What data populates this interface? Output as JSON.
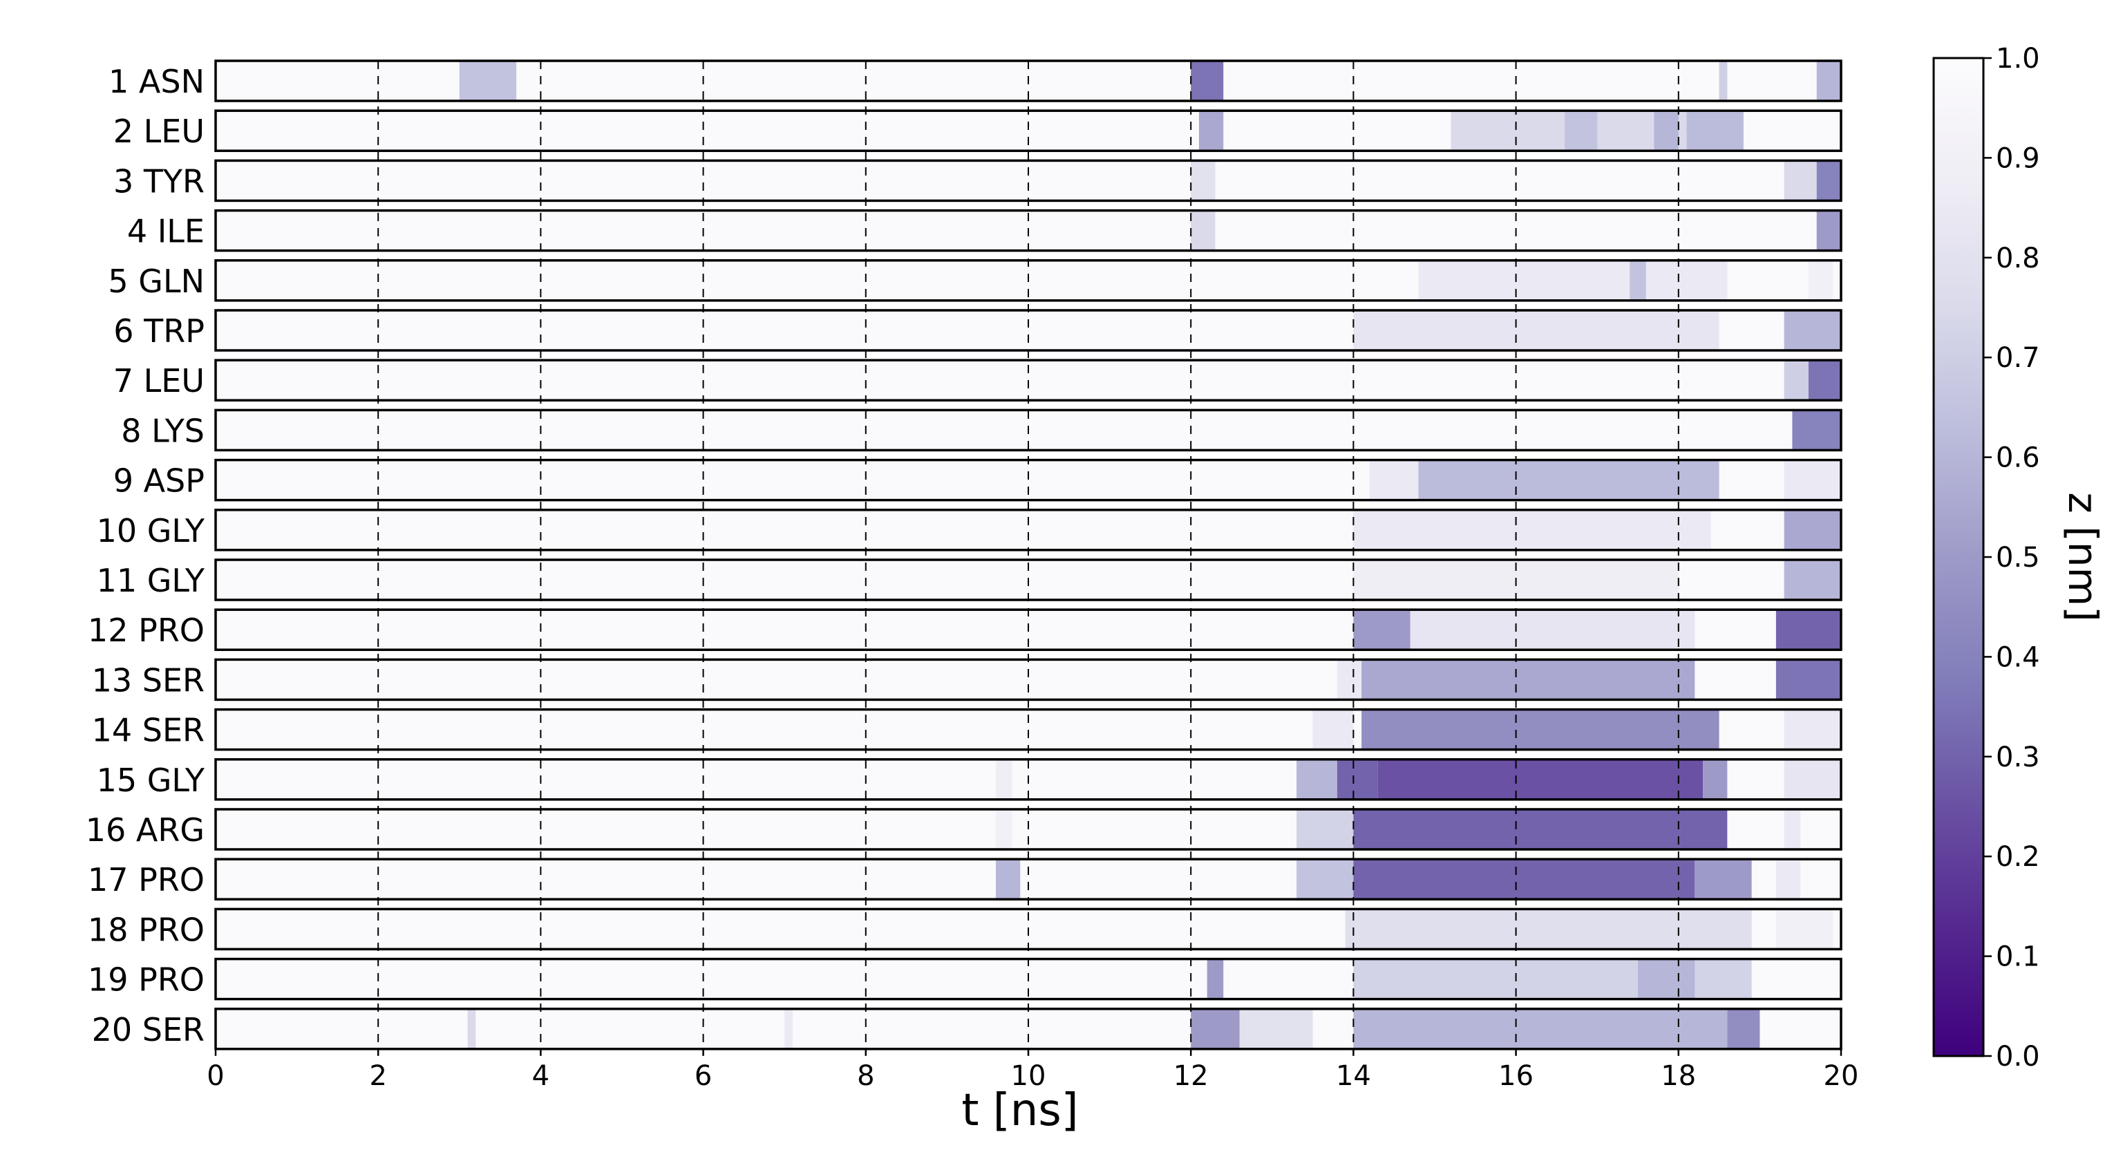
{
  "chart_data": {
    "type": "heatmap",
    "xlabel": "t [ns]",
    "xlim": [
      0,
      20
    ],
    "x_ticks": [
      0,
      2,
      4,
      6,
      8,
      10,
      12,
      14,
      16,
      18,
      20
    ],
    "rows": [
      {
        "label": "1 ASN",
        "regions": [
          [
            3.0,
            3.7,
            0.65
          ],
          [
            12.0,
            12.4,
            0.35
          ],
          [
            18.5,
            18.6,
            0.7
          ],
          [
            19.7,
            20.0,
            0.6
          ]
        ]
      },
      {
        "label": "2 LEU",
        "regions": [
          [
            12.1,
            12.4,
            0.55
          ],
          [
            15.2,
            18.8,
            0.75
          ],
          [
            16.6,
            17.0,
            0.65
          ],
          [
            17.7,
            18.0,
            0.6
          ],
          [
            18.1,
            18.8,
            0.62
          ]
        ]
      },
      {
        "label": "3 TYR",
        "regions": [
          [
            12.0,
            12.3,
            0.8
          ],
          [
            19.3,
            19.7,
            0.75
          ],
          [
            19.7,
            20.0,
            0.4
          ]
        ]
      },
      {
        "label": "4 ILE",
        "regions": [
          [
            12.0,
            12.3,
            0.75
          ],
          [
            19.7,
            20.0,
            0.5
          ]
        ]
      },
      {
        "label": "5 GLN",
        "regions": [
          [
            14.8,
            18.6,
            0.85
          ],
          [
            17.4,
            17.6,
            0.65
          ],
          [
            19.6,
            19.9,
            0.9
          ]
        ]
      },
      {
        "label": "6 TRP",
        "regions": [
          [
            14.0,
            18.5,
            0.82
          ],
          [
            19.3,
            20.0,
            0.6
          ]
        ]
      },
      {
        "label": "7 LEU",
        "regions": [
          [
            19.3,
            19.6,
            0.7
          ],
          [
            19.6,
            20.0,
            0.35
          ]
        ]
      },
      {
        "label": "8 LYS",
        "regions": [
          [
            19.4,
            20.0,
            0.4
          ]
        ]
      },
      {
        "label": "9 ASP",
        "regions": [
          [
            14.2,
            14.8,
            0.85
          ],
          [
            14.8,
            18.5,
            0.62
          ],
          [
            19.3,
            20.0,
            0.85
          ]
        ]
      },
      {
        "label": "10 GLY",
        "regions": [
          [
            14.0,
            18.4,
            0.85
          ],
          [
            19.3,
            20.0,
            0.55
          ]
        ]
      },
      {
        "label": "11 GLY",
        "regions": [
          [
            14.0,
            18.0,
            0.88
          ],
          [
            19.3,
            20.0,
            0.6
          ]
        ]
      },
      {
        "label": "12 PRO",
        "regions": [
          [
            14.0,
            14.7,
            0.5
          ],
          [
            14.7,
            18.2,
            0.82
          ],
          [
            19.2,
            20.0,
            0.3
          ]
        ]
      },
      {
        "label": "13 SER",
        "regions": [
          [
            13.8,
            14.1,
            0.85
          ],
          [
            14.1,
            18.2,
            0.55
          ],
          [
            19.2,
            20.0,
            0.35
          ]
        ]
      },
      {
        "label": "14 SER",
        "regions": [
          [
            13.5,
            14.0,
            0.85
          ],
          [
            14.1,
            18.5,
            0.45
          ],
          [
            19.3,
            20.0,
            0.85
          ]
        ]
      },
      {
        "label": "15 GLY",
        "regions": [
          [
            9.6,
            9.8,
            0.88
          ],
          [
            13.3,
            13.8,
            0.6
          ],
          [
            13.8,
            14.3,
            0.3
          ],
          [
            14.3,
            18.3,
            0.25
          ],
          [
            18.3,
            18.6,
            0.5
          ],
          [
            19.3,
            20.0,
            0.82
          ]
        ]
      },
      {
        "label": "16 ARG",
        "regions": [
          [
            9.6,
            9.8,
            0.9
          ],
          [
            13.3,
            14.0,
            0.72
          ],
          [
            14.0,
            18.6,
            0.3
          ],
          [
            19.3,
            19.5,
            0.85
          ]
        ]
      },
      {
        "label": "17 PRO",
        "regions": [
          [
            9.6,
            9.9,
            0.6
          ],
          [
            13.3,
            14.0,
            0.65
          ],
          [
            14.0,
            18.2,
            0.3
          ],
          [
            18.2,
            18.9,
            0.5
          ],
          [
            19.2,
            19.5,
            0.85
          ]
        ]
      },
      {
        "label": "18 PRO",
        "regions": [
          [
            13.9,
            18.9,
            0.78
          ],
          [
            19.2,
            19.9,
            0.9
          ]
        ]
      },
      {
        "label": "19 PRO",
        "regions": [
          [
            12.2,
            12.4,
            0.5
          ],
          [
            14.0,
            18.9,
            0.72
          ],
          [
            17.5,
            18.2,
            0.6
          ]
        ]
      },
      {
        "label": "20 SER",
        "regions": [
          [
            3.1,
            3.2,
            0.75
          ],
          [
            7.0,
            7.1,
            0.85
          ],
          [
            12.0,
            12.6,
            0.5
          ],
          [
            12.6,
            13.5,
            0.8
          ],
          [
            14.0,
            18.6,
            0.6
          ],
          [
            18.6,
            19.0,
            0.45
          ]
        ]
      }
    ],
    "colorbar": {
      "label": "z [nm]",
      "range": [
        0.0,
        1.0
      ],
      "ticks": [
        "0.0",
        "0.1",
        "0.2",
        "0.3",
        "0.4",
        "0.5",
        "0.6",
        "0.7",
        "0.8",
        "0.9",
        "1.0"
      ],
      "colormap": "Purples_r",
      "color_low": "#3f007d",
      "color_high": "#fcfbfd"
    }
  }
}
